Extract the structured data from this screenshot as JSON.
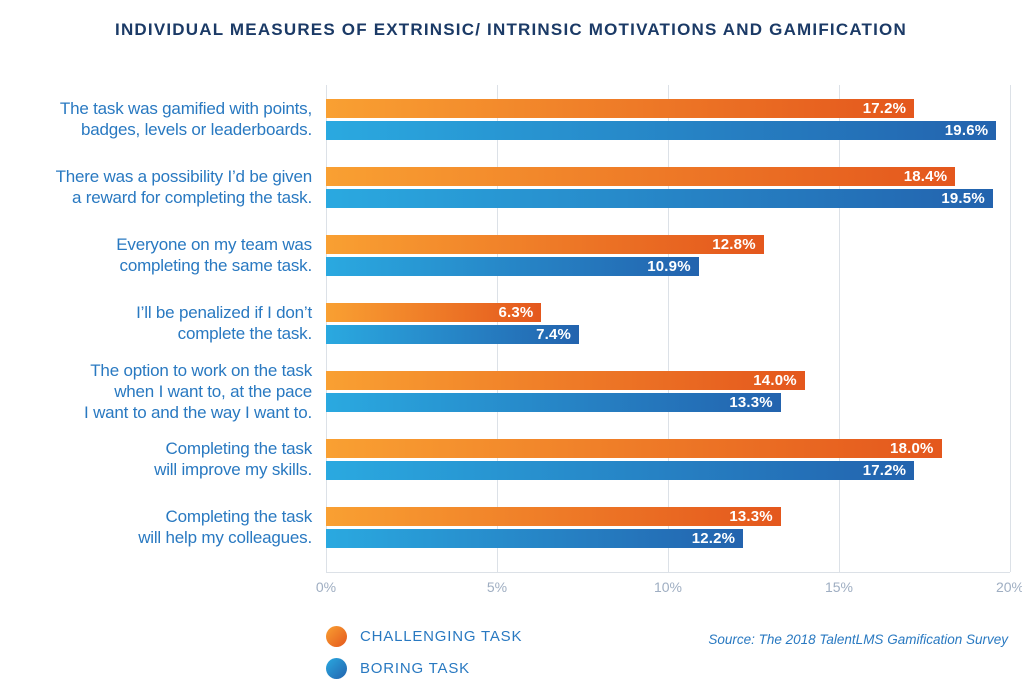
{
  "title": "INDIVIDUAL MEASURES OF EXTRINSIC/ INTRINSIC MOTIVATIONS AND GAMIFICATION",
  "source_note": "Source: The 2018 TalentLMS Gamification Survey",
  "legend": {
    "items": [
      {
        "label": "CHALLENGING TASK",
        "series": "challenging"
      },
      {
        "label": "BORING TASK",
        "series": "boring"
      }
    ]
  },
  "colors": {
    "challenging_start": "#F9A032",
    "challenging_end": "#E4571D",
    "boring_start": "#2AA9E0",
    "boring_end": "#2363AE",
    "title_text": "#1B3A66",
    "category_text": "#2979C1",
    "axis_tick_text": "#9FAEC2",
    "gridline": "#DCE1E7",
    "value_text": "#FFFFFF"
  },
  "chart_data": {
    "type": "bar",
    "orientation": "horizontal",
    "title": "INDIVIDUAL MEASURES OF EXTRINSIC/ INTRINSIC MOTIVATIONS AND GAMIFICATION",
    "categories": [
      "The task was gamified with points,\nbadges, levels or leaderboards.",
      "There was a possibility I’d be given\na reward for completing the task.",
      "Everyone on my team was\ncompleting the same task.",
      "I’ll be penalized if I don’t\ncomplete the task.",
      "The option to work on the task\nwhen I want to, at the pace\nI want to and the way I want to.",
      "Completing the task\nwill improve my skills.",
      "Completing the task\nwill help my colleagues."
    ],
    "series": [
      {
        "name": "CHALLENGING TASK",
        "key": "challenging",
        "values": [
          17.2,
          18.4,
          12.8,
          6.3,
          14.0,
          18.0,
          13.3
        ]
      },
      {
        "name": "BORING TASK",
        "key": "boring",
        "values": [
          19.6,
          19.5,
          10.9,
          7.4,
          13.3,
          17.2,
          12.2
        ]
      }
    ],
    "value_suffix": "%",
    "xlim": [
      0,
      20
    ],
    "x_ticks": [
      {
        "value": 0,
        "label": "0%"
      },
      {
        "value": 5,
        "label": "5%"
      },
      {
        "value": 10,
        "label": "10%"
      },
      {
        "value": 15,
        "label": "15%"
      },
      {
        "value": 20,
        "label": "20%"
      }
    ],
    "grid": true,
    "legend_position": "bottom-left"
  }
}
